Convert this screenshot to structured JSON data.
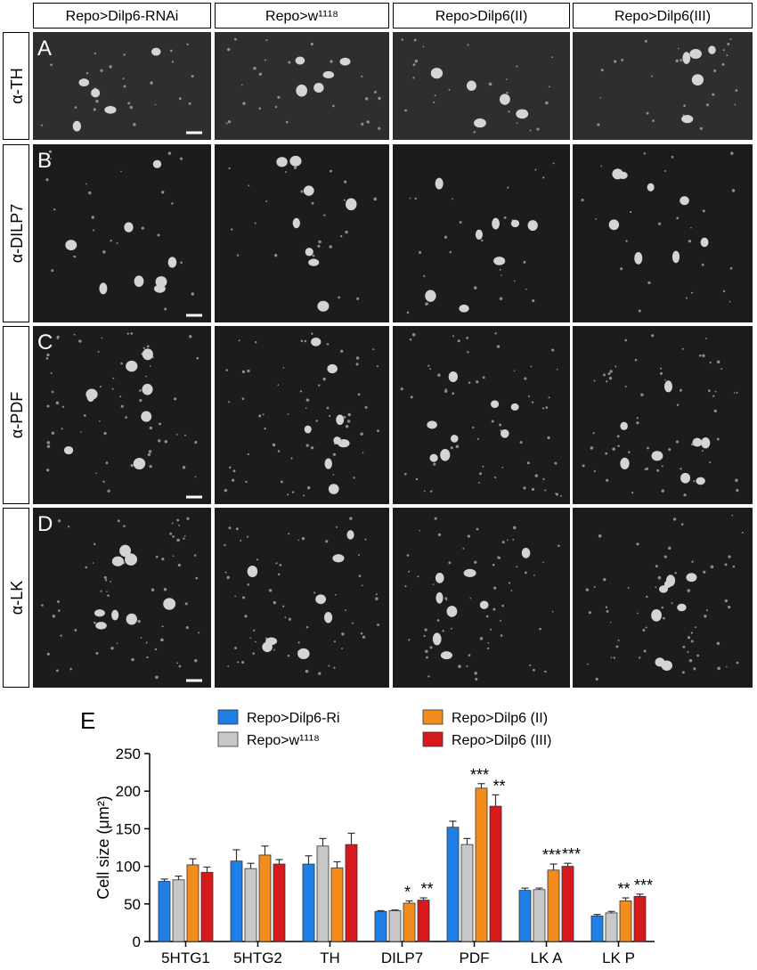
{
  "figure": {
    "columns": [
      "Repo>Dilp6-RNAi",
      "Repo>w¹¹¹⁸",
      "Repo>Dilp6(II)",
      "Repo>Dilp6(III)"
    ],
    "rows": [
      {
        "letter": "A",
        "label": "α-TH"
      },
      {
        "letter": "B",
        "label": "α-DILP7"
      },
      {
        "letter": "C",
        "label": "α-PDF"
      },
      {
        "letter": "D",
        "label": "α-LK"
      }
    ]
  },
  "chart_data": {
    "type": "bar",
    "panel_letter": "E",
    "y_label": "Cell size (μm²)",
    "categories": [
      "5HTG1",
      "5HTG2",
      "TH",
      "DILP7",
      "PDF",
      "LK A",
      "LK P"
    ],
    "series": [
      {
        "name": "Repo>Dilp6-Ri",
        "color": "#1f7fe6",
        "values": [
          80,
          107,
          103,
          40,
          152,
          68,
          34
        ],
        "errors": [
          3,
          15,
          11,
          1,
          8,
          3,
          2
        ],
        "annotations": [
          null,
          null,
          null,
          null,
          null,
          null,
          null
        ]
      },
      {
        "name": "Repo>w¹¹¹⁸",
        "color": "#c8c8c8",
        "values": [
          82,
          97,
          127,
          41,
          129,
          69,
          38
        ],
        "errors": [
          5,
          7,
          10,
          1,
          8,
          2,
          2
        ],
        "annotations": [
          null,
          null,
          null,
          null,
          null,
          null,
          null
        ]
      },
      {
        "name": "Repo>Dilp6 (II)",
        "color": "#f28c1c",
        "values": [
          102,
          115,
          98,
          51,
          204,
          95,
          54
        ],
        "errors": [
          8,
          12,
          8,
          3,
          6,
          8,
          4
        ],
        "annotations": [
          null,
          null,
          null,
          "*",
          "***",
          "***",
          "**"
        ]
      },
      {
        "name": "Repo>Dilp6 (III)",
        "color": "#d7191c",
        "values": [
          92,
          103,
          129,
          55,
          180,
          100,
          60
        ],
        "errors": [
          7,
          6,
          15,
          3,
          15,
          4,
          3
        ],
        "annotations": [
          null,
          null,
          null,
          "**",
          "**",
          "***",
          "***"
        ]
      }
    ],
    "ylim": [
      0,
      250
    ],
    "yticks": [
      0,
      50,
      100,
      150,
      200,
      250
    ]
  }
}
